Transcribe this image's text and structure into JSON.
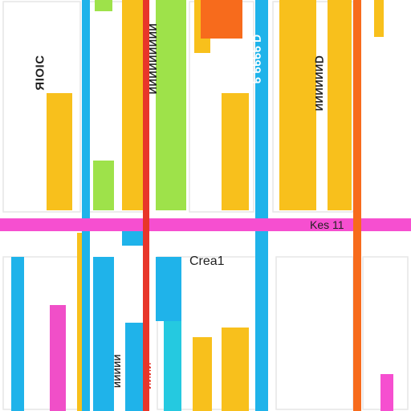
{
  "labels": {
    "left_vertical": "ЯIOIC",
    "center_vertical": "ИИИИИИИИИ",
    "blue_vertical": "ᗡ ᑫᑫᑫᑫ ᑫ",
    "right_vertical": "ᗡИИИИИИ",
    "band_label": "Kes 11",
    "mid_label": "Crea1",
    "bottom_vertical": "ИИИИИ",
    "bottom_red_vertical": "ИИИИ"
  },
  "palette": {
    "yellow": "#f8c01c",
    "green": "#9ee24a",
    "orange": "#f76b1c",
    "blue": "#1fb3ea",
    "cyan": "#25c9e0",
    "red": "#e8362a",
    "pink": "#f04fc8",
    "magenta": "#f64fd0",
    "grid": "#e6e6e6"
  }
}
